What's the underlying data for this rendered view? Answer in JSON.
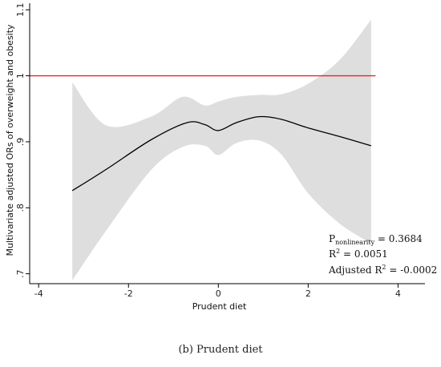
{
  "chart_data": {
    "type": "line",
    "xlabel": "Prudent diet",
    "ylabel": "Multivariate adjusted ORs of overweight and obesity",
    "xlim": [
      -4.2,
      4.6
    ],
    "ylim": [
      0.685,
      1.11
    ],
    "xticks": [
      -4,
      -2,
      0,
      2,
      4
    ],
    "yticks": [
      0.7,
      0.8,
      0.9,
      1,
      1.1
    ],
    "ytick_labels": [
      ".7",
      ".8",
      ".9",
      "1",
      "1.1"
    ],
    "reference_line": {
      "y": 1,
      "x_range": [
        -4.2,
        3.5
      ],
      "color": "#e8242a"
    },
    "series": [
      {
        "x": [
          -3.25,
          -2.5,
          -1.5,
          -0.7,
          -0.3,
          0,
          0.4,
          0.9,
          1.4,
          2.0,
          2.7,
          3.4
        ],
        "y": [
          0.826,
          0.858,
          0.903,
          0.929,
          0.926,
          0.917,
          0.929,
          0.938,
          0.934,
          0.921,
          0.908,
          0.894
        ],
        "color": "#000000"
      }
    ],
    "confidence_band": {
      "x": [
        -3.25,
        -2.5,
        -1.5,
        -0.8,
        -0.3,
        0,
        0.4,
        0.9,
        1.4,
        2.0,
        2.7,
        3.4
      ],
      "upper": [
        0.99,
        0.925,
        0.938,
        0.968,
        0.955,
        0.961,
        0.968,
        0.971,
        0.972,
        0.988,
        1.024,
        1.085
      ],
      "lower": [
        0.69,
        0.765,
        0.857,
        0.892,
        0.894,
        0.88,
        0.898,
        0.902,
        0.881,
        0.822,
        0.776,
        0.746
      ],
      "color": "#dedede"
    },
    "annotations": {
      "p_main": "P",
      "p_sub": "nonlinearity",
      "p_value": " = 0.3684",
      "r2_main": "R",
      "r2_sup": "2",
      "r2_value": " = 0.0051",
      "adj_main": "Adjusted R",
      "adj_sup": "2",
      "adj_value": " = -0.0002"
    }
  },
  "caption": "(b)   Prudent diet"
}
